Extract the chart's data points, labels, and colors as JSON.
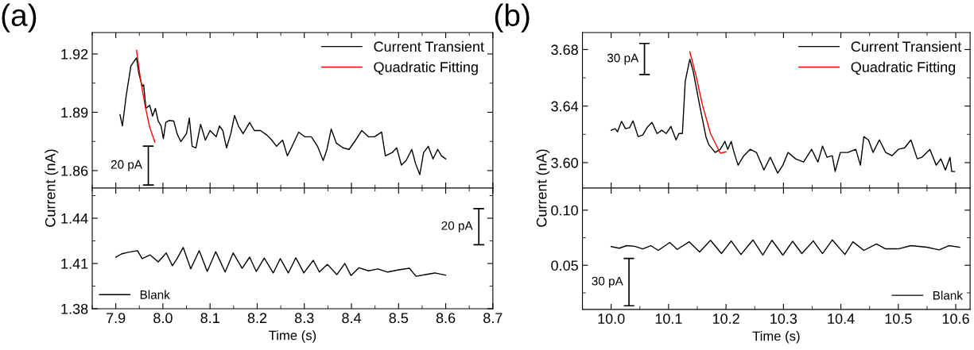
{
  "chart_data": [
    {
      "type": "line",
      "title": "(a)",
      "ylabel": "Current (nA)",
      "xlim": [
        7.85,
        8.7
      ],
      "ylim": [
        1.851,
        1.931
      ],
      "yticks": [
        1.86,
        1.89,
        1.92
      ],
      "tick_labels": "y",
      "legend": "top right",
      "grid": false,
      "annotations": [
        "20 pA"
      ],
      "series": [
        {
          "name": "Current Transient",
          "color": "#000000",
          "x": [
            7.909,
            7.914,
            7.922,
            7.932,
            7.939,
            7.944,
            7.949,
            7.956,
            7.959,
            7.964,
            7.972,
            7.978,
            7.984,
            7.99,
            7.996,
            8.001,
            8.006,
            8.013,
            8.023,
            8.03,
            8.038,
            8.05,
            8.056,
            8.062,
            8.07,
            8.08,
            8.09,
            8.1,
            8.113,
            8.12,
            8.127,
            8.135,
            8.144,
            8.152,
            8.16,
            8.17,
            8.184,
            8.194,
            8.207,
            8.221,
            8.231,
            8.241,
            8.254,
            8.264,
            8.274,
            8.288,
            8.301,
            8.315,
            8.328,
            8.34,
            8.348,
            8.357,
            8.368,
            8.382,
            8.395,
            8.409,
            8.422,
            8.436,
            8.449,
            8.464,
            8.472,
            8.486,
            8.496,
            8.506,
            8.516,
            8.528,
            8.536,
            8.545,
            8.553,
            8.563,
            8.573,
            8.583,
            8.591,
            8.6
          ],
          "values": [
            1.8887,
            1.883,
            1.8984,
            1.9138,
            1.9163,
            1.918,
            1.9098,
            1.9033,
            1.9042,
            1.892,
            1.8936,
            1.888,
            1.892,
            1.8855,
            1.883,
            1.8765,
            1.8847,
            1.8858,
            1.8855,
            1.879,
            1.8749,
            1.879,
            1.887,
            1.8725,
            1.8717,
            1.8838,
            1.8757,
            1.8806,
            1.8774,
            1.883,
            1.8806,
            1.8717,
            1.879,
            1.8884,
            1.883,
            1.879,
            1.8847,
            1.8806,
            1.8806,
            1.8782,
            1.8757,
            1.8725,
            1.8757,
            1.8676,
            1.8725,
            1.8798,
            1.8774,
            1.8774,
            1.8725,
            1.8652,
            1.8709,
            1.8814,
            1.8741,
            1.8717,
            1.8709,
            1.8757,
            1.8806,
            1.8774,
            1.8774,
            1.8798,
            1.8676,
            1.8692,
            1.8717,
            1.8628,
            1.8652,
            1.8709,
            1.8636,
            1.8579,
            1.8692,
            1.8725,
            1.866,
            1.8709,
            1.8676,
            1.866
          ]
        },
        {
          "name": "Quadratic Fitting",
          "color": "#ff0000",
          "x": [
            7.944,
            7.952,
            7.962,
            7.972,
            7.983
          ],
          "values": [
            1.9219,
            1.9076,
            1.8936,
            1.8822,
            1.8746
          ]
        }
      ]
    },
    {
      "type": "line",
      "xlabel": "Time (s)",
      "xlim": [
        7.85,
        8.7
      ],
      "ylim": [
        1.38,
        1.46
      ],
      "xticks": [
        7.9,
        {
          "value": 8,
          "label": "8.0"
        },
        8.1,
        8.2,
        8.3,
        8.4,
        8.5,
        8.6,
        8.7
      ],
      "yticks": [
        1.38,
        1.41,
        1.44
      ],
      "legend": "bottom left",
      "grid": false,
      "annotations": [
        "20 pA"
      ],
      "series": [
        {
          "name": "Blank",
          "color": "#000000",
          "x": [
            7.9,
            7.912,
            7.926,
            7.946,
            7.956,
            7.973,
            7.99,
            8.007,
            8.02,
            8.03,
            8.043,
            8.059,
            8.077,
            8.094,
            8.112,
            8.132,
            8.149,
            8.168,
            8.184,
            8.198,
            8.215,
            8.234,
            8.249,
            8.266,
            8.282,
            8.299,
            8.319,
            8.332,
            8.349,
            8.369,
            8.386,
            8.399,
            8.416,
            8.436,
            8.456,
            8.477,
            8.5,
            8.523,
            8.537,
            8.557,
            8.577,
            8.6
          ],
          "values": [
            1.4142,
            1.4163,
            1.4174,
            1.4185,
            1.4132,
            1.4157,
            1.411,
            1.417,
            1.4085,
            1.4132,
            1.4206,
            1.4064,
            1.4185,
            1.4047,
            1.4178,
            1.4043,
            1.417,
            1.4068,
            1.4142,
            1.4047,
            1.4136,
            1.4037,
            1.4132,
            1.4037,
            1.4138,
            1.4037,
            1.4121,
            1.4043,
            1.4094,
            1.4026,
            1.41,
            1.402,
            1.4072,
            1.4051,
            1.4064,
            1.4043,
            1.4058,
            1.4068,
            1.4015,
            1.4026,
            1.4037,
            1.4022
          ]
        }
      ]
    },
    {
      "type": "line",
      "title": "(b)",
      "ylabel": "Current (nA)",
      "xlim": [
        9.95,
        10.625
      ],
      "ylim": [
        3.582,
        3.692
      ],
      "yticks": [
        {
          "value": 3.6,
          "label": "3.60"
        },
        3.64,
        3.68
      ],
      "tick_labels": "y",
      "legend": "top right",
      "grid": false,
      "annotations": [
        "30 pA"
      ],
      "series": [
        {
          "name": "Current Transient",
          "color": "#000000",
          "x": [
            10.0,
            10.007,
            10.011,
            10.018,
            10.025,
            10.032,
            10.038,
            10.047,
            10.055,
            10.063,
            10.071,
            10.08,
            10.088,
            10.096,
            10.104,
            10.113,
            10.118,
            10.124,
            10.129,
            10.137,
            10.143,
            10.154,
            10.165,
            10.17,
            10.181,
            10.19,
            10.198,
            10.203,
            10.209,
            10.214,
            10.221,
            10.231,
            10.242,
            10.253,
            10.266,
            10.277,
            10.29,
            10.299,
            10.308,
            10.321,
            10.335,
            10.349,
            10.36,
            10.368,
            10.376,
            10.385,
            10.39,
            10.399,
            10.412,
            10.426,
            10.434,
            10.44,
            10.448,
            10.456,
            10.467,
            10.478,
            10.489,
            10.5,
            10.511,
            10.522,
            10.533,
            10.541,
            10.555,
            10.566,
            10.574,
            10.582,
            10.59,
            10.593,
            10.598
          ],
          "values": [
            3.6229,
            3.624,
            3.6218,
            3.6292,
            3.624,
            3.6247,
            3.6296,
            3.6184,
            3.6195,
            3.6251,
            3.6285,
            3.6206,
            3.6229,
            3.6206,
            3.6256,
            3.6161,
            3.6206,
            3.6206,
            3.6575,
            3.6733,
            3.6643,
            3.6407,
            3.6184,
            3.6128,
            3.6072,
            3.6094,
            3.615,
            3.6094,
            3.615,
            3.6072,
            3.5982,
            3.6049,
            3.6094,
            3.6072,
            3.5948,
            3.6038,
            3.5926,
            3.5982,
            3.6072,
            3.6027,
            3.6004,
            3.6094,
            3.6004,
            3.6117,
            3.6038,
            3.6049,
            3.5937,
            3.6072,
            3.6072,
            3.6094,
            3.5982,
            3.6184,
            3.6161,
            3.6072,
            3.6161,
            3.6072,
            3.6049,
            3.6094,
            3.6105,
            3.6161,
            3.6027,
            3.6038,
            3.6094,
            3.5982,
            3.6027,
            3.5948,
            3.6038,
            3.5937,
            3.5937
          ]
        },
        {
          "name": "Quadratic Fitting",
          "color": "#ff0000",
          "x": [
            10.137,
            10.148,
            10.159,
            10.173,
            10.19,
            10.2
          ],
          "values": [
            3.6784,
            3.661,
            3.6407,
            3.6206,
            3.6067,
            3.6076
          ]
        }
      ]
    },
    {
      "type": "line",
      "xlabel": "Time (s)",
      "xlim": [
        9.95,
        10.625
      ],
      "ylim": [
        0.01,
        0.12
      ],
      "xticks": [
        {
          "value": 10,
          "label": "10.0"
        },
        10.1,
        10.2,
        10.3,
        10.4,
        10.5,
        10.6
      ],
      "yticks": [
        {
          "value": 0.05,
          "label": "0.05"
        },
        {
          "value": 0.1,
          "label": "0.10"
        }
      ],
      "legend": "bottom right",
      "grid": false,
      "annotations": [
        "30 pA"
      ],
      "series": [
        {
          "name": "Blank",
          "color": "#000000",
          "x": [
            10.0,
            10.014,
            10.027,
            10.041,
            10.055,
            10.069,
            10.082,
            10.102,
            10.115,
            10.136,
            10.154,
            10.173,
            10.192,
            10.209,
            10.226,
            10.247,
            10.264,
            10.28,
            10.299,
            10.316,
            10.332,
            10.352,
            10.368,
            10.385,
            10.407,
            10.421,
            10.44,
            10.462,
            10.478,
            10.5,
            10.522,
            10.55,
            10.571,
            10.588,
            10.607
          ],
          "values": [
            0.067,
            0.0655,
            0.0678,
            0.0672,
            0.0649,
            0.0678,
            0.0635,
            0.0707,
            0.0644,
            0.0713,
            0.0621,
            0.0727,
            0.0606,
            0.0721,
            0.0598,
            0.073,
            0.0592,
            0.0727,
            0.0592,
            0.0718,
            0.0606,
            0.0721,
            0.0606,
            0.073,
            0.0598,
            0.0713,
            0.0635,
            0.0693,
            0.0649,
            0.0649,
            0.0678,
            0.0664,
            0.064,
            0.0678,
            0.0664
          ]
        }
      ]
    }
  ]
}
